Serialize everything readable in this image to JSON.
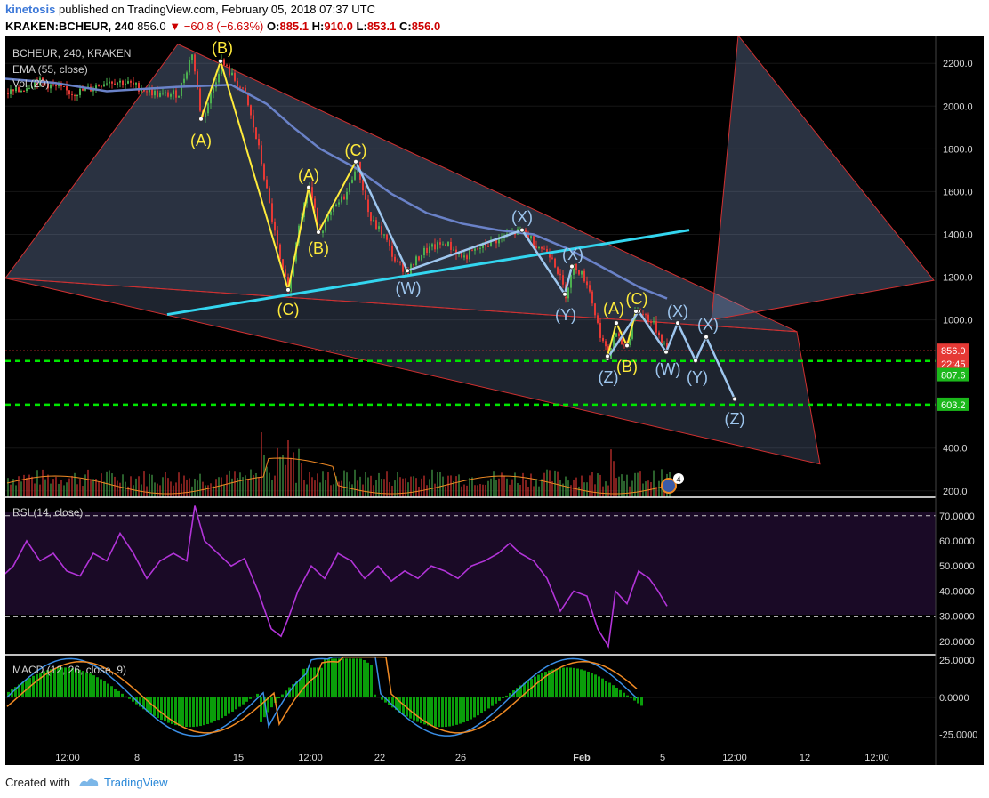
{
  "header": {
    "author": "kinetosis",
    "published": "published on TradingView.com, February 05, 2018 07:37 UTC",
    "symbol": "KRAKEN:BCHEUR, 240",
    "last": "856.0",
    "change": "−60.8 (−6.63%)",
    "o_label": "O:",
    "o": "885.1",
    "h_label": "H:",
    "h": "910.0",
    "l_label": "L:",
    "l": "853.1",
    "c_label": "C:",
    "c": "856.0"
  },
  "legend": {
    "ticker": "BCHEUR, 240, KRAKEN",
    "ema": "EMA (55, close)",
    "vol": "Vol (20)",
    "rsi": "RSI (14, close)",
    "macd": "MACD (12, 26, close, 9)"
  },
  "price_axis": {
    "ticks": [
      "2200.0",
      "2000.0",
      "1800.0",
      "1600.0",
      "1400.0",
      "1200.0",
      "1000.0",
      "400.0",
      "200.0"
    ],
    "tick_values": [
      2200,
      2000,
      1800,
      1600,
      1400,
      1200,
      1000,
      400,
      200
    ],
    "last_price": "856.0",
    "countdown": "22:45",
    "level_upper": "807.6",
    "level_lower": "603.2"
  },
  "rsi_axis": {
    "ticks": [
      "70.0000",
      "60.0000",
      "50.0000",
      "40.0000",
      "30.0000",
      "20.0000"
    ]
  },
  "macd_axis": {
    "ticks": [
      "25.0000",
      "0.0000",
      "-25.0000"
    ]
  },
  "time_axis": [
    "12:00",
    "8",
    "15",
    "12:00",
    "22",
    "26",
    "Feb",
    "5",
    "12:00",
    "12",
    "12:00"
  ],
  "wave_labels": {
    "yellow": [
      "(B)",
      "(A)",
      "(A)",
      "(C)",
      "(B)",
      "(C)",
      "(A)",
      "(C)",
      "(B)"
    ],
    "blue": [
      "(X)",
      "(X)",
      "(W)",
      "(Y)",
      "(Z)",
      "(W)",
      "(X)",
      "(X)",
      "(Y)",
      "(Z)"
    ]
  },
  "badge": "4",
  "footer": {
    "created": "Created with",
    "brand": "TradingView"
  },
  "colors": {
    "background": "#000000",
    "bull": "#4caf50",
    "bear": "#e53935",
    "ema": "#6a82c8",
    "trendline": "#33d6f0",
    "level": "#00e600",
    "wave_yellow": "#ffeb3b",
    "wave_blue": "#9ec6ee",
    "rsi": "#b234d8",
    "macd": "#3a8ee6",
    "signal": "#f08a24",
    "hist": "#0a9e0a"
  },
  "chart_data": {
    "type": "candlestick",
    "title": "BCHEUR, 240, KRAKEN",
    "price_ylim": [
      170,
      2330
    ],
    "close_path": [
      [
        0,
        2060
      ],
      [
        20,
        2070
      ],
      [
        40,
        2120
      ],
      [
        60,
        2090
      ],
      [
        80,
        2060
      ],
      [
        100,
        2080
      ],
      [
        120,
        2120
      ],
      [
        140,
        2110
      ],
      [
        160,
        2080
      ],
      [
        180,
        2050
      ],
      [
        200,
        2060
      ],
      [
        215,
        2250
      ],
      [
        226,
        1930
      ],
      [
        240,
        2100
      ],
      [
        248,
        2210
      ],
      [
        260,
        2140
      ],
      [
        275,
        2050
      ],
      [
        290,
        1800
      ],
      [
        305,
        1470
      ],
      [
        316,
        1230
      ],
      [
        324,
        1140
      ],
      [
        335,
        1460
      ],
      [
        347,
        1620
      ],
      [
        358,
        1410
      ],
      [
        375,
        1520
      ],
      [
        390,
        1600
      ],
      [
        400,
        1740
      ],
      [
        415,
        1470
      ],
      [
        430,
        1400
      ],
      [
        445,
        1260
      ],
      [
        458,
        1230
      ],
      [
        475,
        1320
      ],
      [
        500,
        1360
      ],
      [
        520,
        1290
      ],
      [
        540,
        1340
      ],
      [
        560,
        1380
      ],
      [
        587,
        1420
      ],
      [
        600,
        1360
      ],
      [
        620,
        1300
      ],
      [
        635,
        1120
      ],
      [
        645,
        1260
      ],
      [
        660,
        1170
      ],
      [
        672,
        960
      ],
      [
        683,
        820
      ],
      [
        690,
        940
      ],
      [
        697,
        890
      ],
      [
        705,
        880
      ],
      [
        712,
        1050
      ],
      [
        725,
        1020
      ],
      [
        735,
        970
      ],
      [
        750,
        856
      ]
    ],
    "ema55_path": [
      [
        0,
        2130
      ],
      [
        60,
        2110
      ],
      [
        120,
        2070
      ],
      [
        200,
        2090
      ],
      [
        260,
        2100
      ],
      [
        300,
        2010
      ],
      [
        330,
        1900
      ],
      [
        360,
        1800
      ],
      [
        400,
        1710
      ],
      [
        440,
        1590
      ],
      [
        480,
        1500
      ],
      [
        520,
        1450
      ],
      [
        560,
        1420
      ],
      [
        600,
        1400
      ],
      [
        640,
        1330
      ],
      [
        680,
        1240
      ],
      [
        720,
        1150
      ],
      [
        750,
        1100
      ]
    ],
    "levels": [
      807.6,
      603.2
    ],
    "trendline": [
      [
        188,
        1025
      ],
      [
        775,
        1420
      ]
    ],
    "yellow_wave": [
      [
        226,
        1940
      ],
      [
        248,
        2210
      ],
      [
        324,
        1140
      ],
      [
        347,
        1620
      ],
      [
        358,
        1410
      ],
      [
        400,
        1740
      ],
      [
        683,
        830
      ],
      [
        693,
        985
      ],
      [
        705,
        880
      ],
      [
        715,
        1040
      ]
    ],
    "blue_wave": [
      [
        400,
        1740
      ],
      [
        458,
        1230
      ],
      [
        587,
        1420
      ],
      [
        635,
        1120
      ],
      [
        643,
        1250
      ],
      [
        683,
        820
      ],
      [
        718,
        1040
      ],
      [
        749,
        850
      ],
      [
        762,
        985
      ],
      [
        782,
        810
      ],
      [
        794,
        920
      ],
      [
        826,
        630
      ]
    ],
    "triangles": [
      [
        [
          200,
          2290
        ],
        [
          896,
          945
        ],
        [
          6,
          1195
        ]
      ],
      [
        [
          6,
          1195
        ],
        [
          922,
          325
        ],
        [
          896,
          945
        ]
      ],
      [
        [
          830,
          2330
        ],
        [
          1050,
          1185
        ],
        [
          800,
          1000
        ]
      ]
    ],
    "rsi_path": [
      [
        0,
        45
      ],
      [
        15,
        50
      ],
      [
        30,
        60
      ],
      [
        45,
        52
      ],
      [
        60,
        55
      ],
      [
        75,
        48
      ],
      [
        90,
        46
      ],
      [
        105,
        55
      ],
      [
        120,
        52
      ],
      [
        135,
        63
      ],
      [
        150,
        55
      ],
      [
        165,
        45
      ],
      [
        180,
        52
      ],
      [
        195,
        55
      ],
      [
        210,
        52
      ],
      [
        219,
        74
      ],
      [
        230,
        60
      ],
      [
        245,
        55
      ],
      [
        260,
        50
      ],
      [
        275,
        53
      ],
      [
        290,
        40
      ],
      [
        305,
        25
      ],
      [
        316,
        22
      ],
      [
        325,
        30
      ],
      [
        335,
        40
      ],
      [
        350,
        50
      ],
      [
        365,
        45
      ],
      [
        380,
        55
      ],
      [
        395,
        52
      ],
      [
        410,
        45
      ],
      [
        425,
        50
      ],
      [
        440,
        44
      ],
      [
        455,
        48
      ],
      [
        470,
        45
      ],
      [
        485,
        50
      ],
      [
        500,
        48
      ],
      [
        515,
        45
      ],
      [
        530,
        50
      ],
      [
        545,
        52
      ],
      [
        560,
        55
      ],
      [
        573,
        59
      ],
      [
        585,
        55
      ],
      [
        600,
        52
      ],
      [
        615,
        45
      ],
      [
        630,
        32
      ],
      [
        645,
        40
      ],
      [
        660,
        38
      ],
      [
        672,
        25
      ],
      [
        684,
        18
      ],
      [
        692,
        40
      ],
      [
        705,
        35
      ],
      [
        718,
        48
      ],
      [
        730,
        45
      ],
      [
        740,
        40
      ],
      [
        750,
        34
      ]
    ],
    "rsi_ylim": [
      15,
      77
    ],
    "macd_ylim": [
      -45,
      28
    ],
    "time_ticks_labels": [
      "12:00",
      "8",
      "15",
      "12:00",
      "22",
      "26",
      "Feb",
      "5",
      "12:00",
      "12",
      "12:00"
    ]
  }
}
